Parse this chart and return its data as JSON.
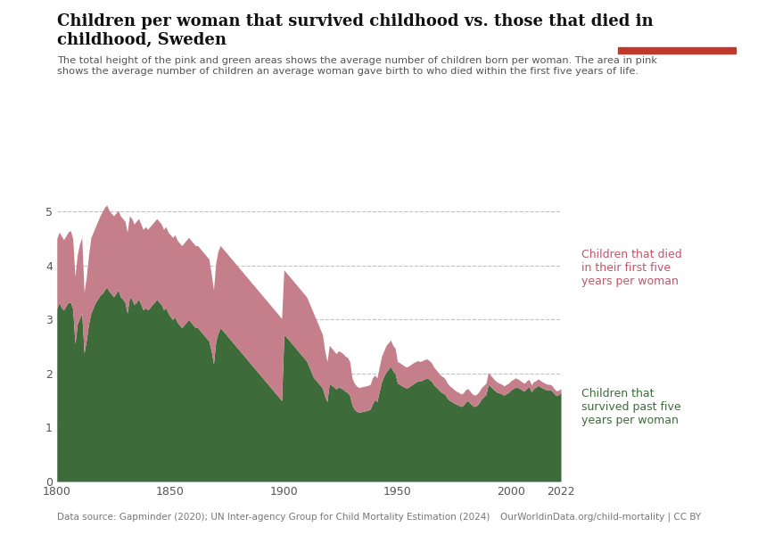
{
  "title_line1": "Children per woman that survived childhood vs. those that died in",
  "title_line2": "childhood, Sweden",
  "subtitle": "The total height of the pink and green areas shows the average number of children born per woman. The area in pink\nshows the average number of children an average woman gave birth to who died within the first five years of life.",
  "datasource": "Data source: Gapminder (2020); UN Inter-agency Group for Child Mortality Estimation (2024)",
  "url": "OurWorldinData.org/child-mortality | CC BY",
  "xlim": [
    1800,
    2022
  ],
  "ylim": [
    0,
    5.5
  ],
  "yticks": [
    0,
    1,
    2,
    3,
    4,
    5
  ],
  "xticks": [
    1800,
    1850,
    1900,
    1950,
    2000,
    2022
  ],
  "color_survived": "#3d6b3a",
  "color_died": "#c47f8b",
  "color_annotation_died": "#c0566a",
  "color_annotation_survived": "#3d6b3a",
  "background_color": "#ffffff",
  "logo_bg": "#1a2e4a",
  "logo_red": "#c0392b",
  "years": [
    1800,
    1801,
    1802,
    1803,
    1804,
    1805,
    1806,
    1807,
    1808,
    1809,
    1810,
    1811,
    1812,
    1813,
    1814,
    1815,
    1816,
    1817,
    1818,
    1819,
    1820,
    1821,
    1822,
    1823,
    1824,
    1825,
    1826,
    1827,
    1828,
    1829,
    1830,
    1831,
    1832,
    1833,
    1834,
    1835,
    1836,
    1837,
    1838,
    1839,
    1840,
    1841,
    1842,
    1843,
    1844,
    1845,
    1846,
    1847,
    1848,
    1849,
    1850,
    1851,
    1852,
    1853,
    1854,
    1855,
    1856,
    1857,
    1858,
    1859,
    1860,
    1861,
    1862,
    1863,
    1864,
    1865,
    1866,
    1867,
    1868,
    1869,
    1870,
    1871,
    1872,
    1873,
    1874,
    1875,
    1876,
    1877,
    1878,
    1879,
    1880,
    1881,
    1882,
    1883,
    1884,
    1885,
    1886,
    1887,
    1888,
    1889,
    1890,
    1891,
    1892,
    1893,
    1894,
    1895,
    1896,
    1897,
    1898,
    1899,
    1900,
    1901,
    1902,
    1903,
    1904,
    1905,
    1906,
    1907,
    1908,
    1909,
    1910,
    1911,
    1912,
    1913,
    1914,
    1915,
    1916,
    1917,
    1918,
    1919,
    1920,
    1921,
    1922,
    1923,
    1924,
    1925,
    1926,
    1927,
    1928,
    1929,
    1930,
    1931,
    1932,
    1933,
    1934,
    1935,
    1936,
    1937,
    1938,
    1939,
    1940,
    1941,
    1942,
    1943,
    1944,
    1945,
    1946,
    1947,
    1948,
    1949,
    1950,
    1951,
    1952,
    1953,
    1954,
    1955,
    1956,
    1957,
    1958,
    1959,
    1960,
    1961,
    1962,
    1963,
    1964,
    1965,
    1966,
    1967,
    1968,
    1969,
    1970,
    1971,
    1972,
    1973,
    1974,
    1975,
    1976,
    1977,
    1978,
    1979,
    1980,
    1981,
    1982,
    1983,
    1984,
    1985,
    1986,
    1987,
    1988,
    1989,
    1990,
    1991,
    1992,
    1993,
    1994,
    1995,
    1996,
    1997,
    1998,
    1999,
    2000,
    2001,
    2002,
    2003,
    2004,
    2005,
    2006,
    2007,
    2008,
    2009,
    2010,
    2011,
    2012,
    2013,
    2014,
    2015,
    2016,
    2017,
    2018,
    2019,
    2020,
    2021,
    2022
  ],
  "total_fertility": [
    4.5,
    4.62,
    4.55,
    4.48,
    4.55,
    4.62,
    4.65,
    4.5,
    3.8,
    4.2,
    4.4,
    4.52,
    3.5,
    3.8,
    4.2,
    4.52,
    4.62,
    4.72,
    4.82,
    4.92,
    5.0,
    5.08,
    5.12,
    5.02,
    4.97,
    4.92,
    4.97,
    5.02,
    4.92,
    4.87,
    4.82,
    4.62,
    4.92,
    4.87,
    4.77,
    4.82,
    4.87,
    4.77,
    4.67,
    4.72,
    4.67,
    4.72,
    4.77,
    4.82,
    4.87,
    4.82,
    4.77,
    4.67,
    4.72,
    4.62,
    4.57,
    4.52,
    4.57,
    4.47,
    4.42,
    4.37,
    4.42,
    4.47,
    4.52,
    4.47,
    4.42,
    4.37,
    4.37,
    4.32,
    4.27,
    4.22,
    4.17,
    4.12,
    3.85,
    3.55,
    4.05,
    4.27,
    4.37,
    4.32,
    4.27,
    4.22,
    4.17,
    4.12,
    4.07,
    4.02,
    3.97,
    3.92,
    3.87,
    3.82,
    3.77,
    3.72,
    3.67,
    3.62,
    3.57,
    3.52,
    3.47,
    3.42,
    3.37,
    3.32,
    3.27,
    3.22,
    3.17,
    3.12,
    3.07,
    3.02,
    3.92,
    3.87,
    3.82,
    3.77,
    3.72,
    3.67,
    3.62,
    3.57,
    3.52,
    3.47,
    3.42,
    3.32,
    3.22,
    3.12,
    3.02,
    2.92,
    2.82,
    2.72,
    2.42,
    2.22,
    2.52,
    2.47,
    2.42,
    2.37,
    2.42,
    2.4,
    2.37,
    2.32,
    2.3,
    2.22,
    1.92,
    1.82,
    1.77,
    1.74,
    1.75,
    1.76,
    1.77,
    1.78,
    1.8,
    1.92,
    1.97,
    1.92,
    2.12,
    2.32,
    2.42,
    2.52,
    2.57,
    2.62,
    2.52,
    2.47,
    2.22,
    2.2,
    2.17,
    2.14,
    2.12,
    2.14,
    2.17,
    2.2,
    2.22,
    2.24,
    2.22,
    2.24,
    2.26,
    2.27,
    2.24,
    2.2,
    2.12,
    2.07,
    2.02,
    1.97,
    1.94,
    1.9,
    1.82,
    1.77,
    1.74,
    1.7,
    1.67,
    1.65,
    1.62,
    1.64,
    1.7,
    1.72,
    1.67,
    1.62,
    1.6,
    1.62,
    1.67,
    1.74,
    1.78,
    1.82,
    2.02,
    1.97,
    1.92,
    1.87,
    1.84,
    1.82,
    1.8,
    1.77,
    1.8,
    1.82,
    1.87,
    1.89,
    1.92,
    1.9,
    1.87,
    1.84,
    1.82,
    1.87,
    1.89,
    1.79,
    1.85,
    1.87,
    1.9,
    1.87,
    1.84,
    1.82,
    1.8,
    1.8,
    1.78,
    1.72,
    1.68,
    1.69,
    1.72
  ],
  "survived_fertility": [
    3.2,
    3.32,
    3.22,
    3.18,
    3.25,
    3.32,
    3.32,
    3.2,
    2.55,
    2.92,
    3.02,
    3.12,
    2.38,
    2.62,
    2.92,
    3.12,
    3.22,
    3.32,
    3.38,
    3.45,
    3.48,
    3.55,
    3.6,
    3.52,
    3.48,
    3.42,
    3.48,
    3.55,
    3.42,
    3.38,
    3.32,
    3.12,
    3.42,
    3.38,
    3.28,
    3.32,
    3.38,
    3.28,
    3.18,
    3.22,
    3.18,
    3.22,
    3.28,
    3.32,
    3.38,
    3.32,
    3.28,
    3.18,
    3.22,
    3.12,
    3.05,
    3.0,
    3.05,
    2.95,
    2.9,
    2.85,
    2.9,
    2.95,
    3.0,
    2.95,
    2.9,
    2.85,
    2.85,
    2.8,
    2.75,
    2.7,
    2.65,
    2.6,
    2.42,
    2.18,
    2.6,
    2.75,
    2.85,
    2.8,
    2.75,
    2.7,
    2.65,
    2.6,
    2.55,
    2.5,
    2.45,
    2.4,
    2.35,
    2.3,
    2.25,
    2.2,
    2.15,
    2.1,
    2.05,
    2.0,
    1.95,
    1.9,
    1.85,
    1.8,
    1.75,
    1.7,
    1.65,
    1.6,
    1.55,
    1.5,
    2.72,
    2.68,
    2.63,
    2.58,
    2.53,
    2.48,
    2.43,
    2.38,
    2.33,
    2.28,
    2.23,
    2.13,
    2.03,
    1.93,
    1.88,
    1.83,
    1.78,
    1.73,
    1.58,
    1.48,
    1.82,
    1.78,
    1.75,
    1.71,
    1.75,
    1.73,
    1.71,
    1.67,
    1.65,
    1.59,
    1.42,
    1.34,
    1.3,
    1.28,
    1.29,
    1.3,
    1.31,
    1.32,
    1.34,
    1.44,
    1.52,
    1.48,
    1.67,
    1.85,
    1.95,
    2.03,
    2.08,
    2.13,
    2.05,
    2.0,
    1.82,
    1.8,
    1.77,
    1.75,
    1.73,
    1.75,
    1.78,
    1.81,
    1.84,
    1.86,
    1.86,
    1.88,
    1.9,
    1.92,
    1.89,
    1.86,
    1.79,
    1.75,
    1.71,
    1.66,
    1.64,
    1.61,
    1.54,
    1.5,
    1.48,
    1.45,
    1.43,
    1.41,
    1.39,
    1.41,
    1.47,
    1.5,
    1.45,
    1.41,
    1.39,
    1.41,
    1.46,
    1.53,
    1.57,
    1.61,
    1.8,
    1.76,
    1.72,
    1.68,
    1.65,
    1.64,
    1.62,
    1.6,
    1.63,
    1.65,
    1.7,
    1.72,
    1.75,
    1.74,
    1.72,
    1.69,
    1.68,
    1.73,
    1.76,
    1.66,
    1.72,
    1.75,
    1.78,
    1.75,
    1.73,
    1.71,
    1.69,
    1.7,
    1.68,
    1.63,
    1.59,
    1.61,
    1.65
  ]
}
